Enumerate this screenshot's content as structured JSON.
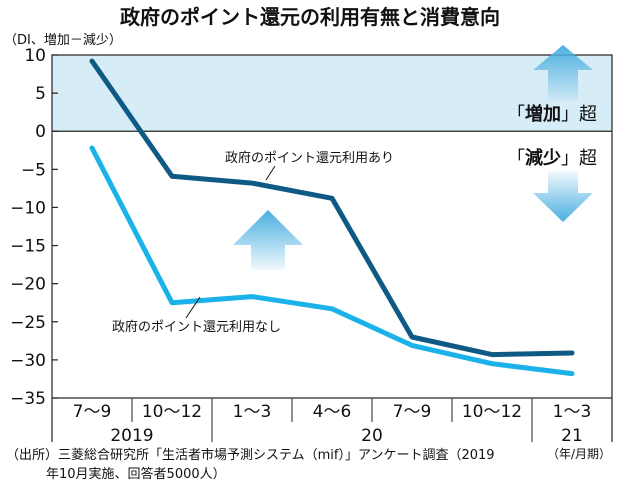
{
  "chart_data": {
    "type": "line",
    "title": "政府のポイント還元の利用有無と消費意向",
    "ylabel": "（DI、増加－減少）",
    "ylim": [
      -35,
      10
    ],
    "yticks": [
      10,
      5,
      0,
      -5,
      -10,
      -15,
      -20,
      -25,
      -30,
      -35
    ],
    "ytick_labels": [
      "10",
      "5",
      "0",
      "−5",
      "−10",
      "−15",
      "−20",
      "−25",
      "−30",
      "−35"
    ],
    "categories": [
      "7〜9",
      "10〜12",
      "1〜3",
      "4〜6",
      "7〜9",
      "10〜12",
      "1〜3"
    ],
    "year_labels": [
      {
        "text": "2019",
        "index": 0.5
      },
      {
        "text": "20",
        "index": 3.5
      },
      {
        "text": "21",
        "index": 6
      }
    ],
    "x_unit": "（年/月期）",
    "grid": false,
    "series": [
      {
        "name": "政府のポイント還元利用あり",
        "color": "#0f5a85",
        "values": [
          9.2,
          -5.9,
          -6.8,
          -8.8,
          -27.0,
          -29.3,
          -29.1
        ]
      },
      {
        "name": "政府のポイント還元利用なし",
        "color": "#1ab2e8",
        "values": [
          -2.2,
          -22.5,
          -21.7,
          -23.3,
          -28.1,
          -30.5,
          -31.8
        ]
      }
    ],
    "annotations": {
      "increase": {
        "open": "「",
        "key": "増加",
        "close": "」超"
      },
      "decrease": {
        "open": "「",
        "key": "減少",
        "close": "」超"
      }
    },
    "colors": {
      "positive_region": "#d6edf7",
      "arrow": "#4aaee0"
    }
  },
  "source_note": {
    "line1": "（出所）三菱総合研究所「生活者市場予測システム（mif）」アンケート調査（2019",
    "line2": "年10月実施、回答者5000人）"
  }
}
